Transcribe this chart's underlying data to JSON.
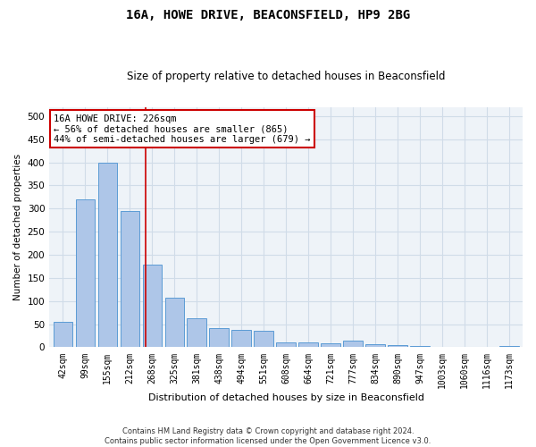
{
  "title": "16A, HOWE DRIVE, BEACONSFIELD, HP9 2BG",
  "subtitle": "Size of property relative to detached houses in Beaconsfield",
  "xlabel": "Distribution of detached houses by size in Beaconsfield",
  "ylabel": "Number of detached properties",
  "categories": [
    "42sqm",
    "99sqm",
    "155sqm",
    "212sqm",
    "268sqm",
    "325sqm",
    "381sqm",
    "438sqm",
    "494sqm",
    "551sqm",
    "608sqm",
    "664sqm",
    "721sqm",
    "777sqm",
    "834sqm",
    "890sqm",
    "947sqm",
    "1003sqm",
    "1060sqm",
    "1116sqm",
    "1173sqm"
  ],
  "values": [
    55,
    320,
    400,
    295,
    178,
    107,
    63,
    42,
    38,
    35,
    11,
    11,
    8,
    15,
    7,
    5,
    3,
    1,
    0,
    0,
    3
  ],
  "bar_color": "#aec6e8",
  "bar_edge_color": "#5b9bd5",
  "grid_color": "#d0dce8",
  "background_color": "#eef3f8",
  "vline_x": 3.72,
  "vline_color": "#cc0000",
  "annotation_text": "16A HOWE DRIVE: 226sqm\n← 56% of detached houses are smaller (865)\n44% of semi-detached houses are larger (679) →",
  "annotation_box_color": "#ffffff",
  "annotation_box_edge_color": "#cc0000",
  "footer_text": "Contains HM Land Registry data © Crown copyright and database right 2024.\nContains public sector information licensed under the Open Government Licence v3.0.",
  "ylim": [
    0,
    520
  ],
  "yticks": [
    0,
    50,
    100,
    150,
    200,
    250,
    300,
    350,
    400,
    450,
    500
  ]
}
